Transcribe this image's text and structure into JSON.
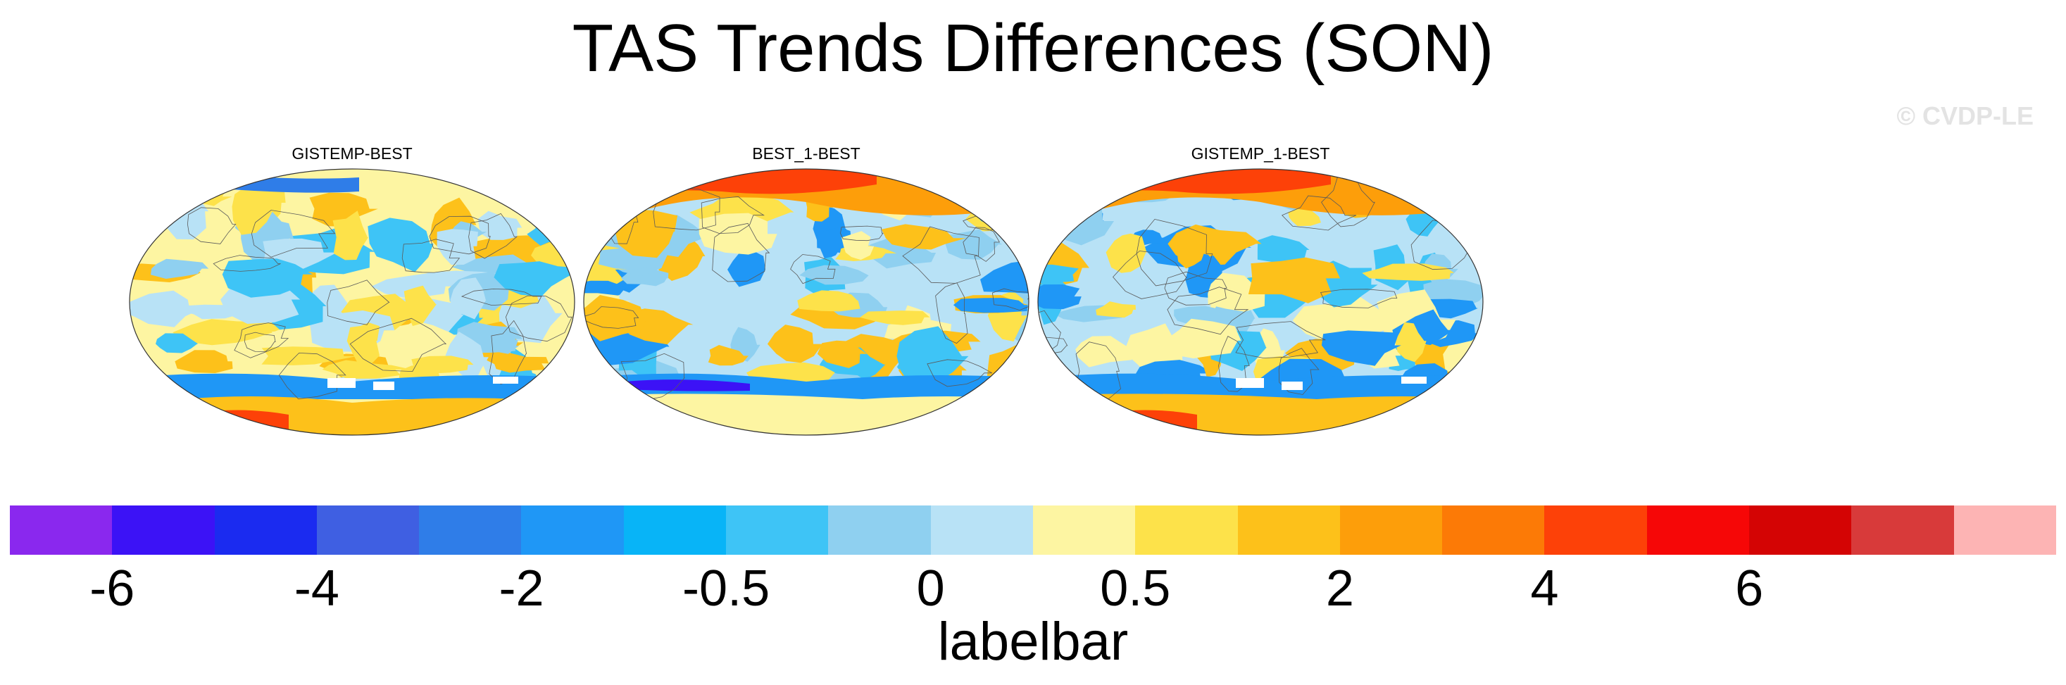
{
  "title": "TAS Trends Differences (SON)",
  "watermark": "© CVDP-LE",
  "panels": [
    {
      "title": "GISTEMP-BEST"
    },
    {
      "title": "BEST_1-BEST"
    },
    {
      "title": "GISTEMP_1-BEST"
    }
  ],
  "labelbar": {
    "title": "labelbar",
    "colors": [
      "#8a28ee",
      "#3c12f6",
      "#1b2bf0",
      "#3f5fe2",
      "#2f7de8",
      "#1f97f6",
      "#08b4f7",
      "#3ec4f6",
      "#8fd0f0",
      "#b8e2f6",
      "#fdf5a2",
      "#fde24a",
      "#fdc11a",
      "#fd9e0a",
      "#fc7a06",
      "#fd4108",
      "#f60707",
      "#d40404",
      "#d83a3a",
      "#fdb4b4"
    ],
    "tick_labels": [
      "-6",
      "-4",
      "-2",
      "-0.5",
      "0",
      "0.5",
      "2",
      "4",
      "6"
    ]
  }
}
